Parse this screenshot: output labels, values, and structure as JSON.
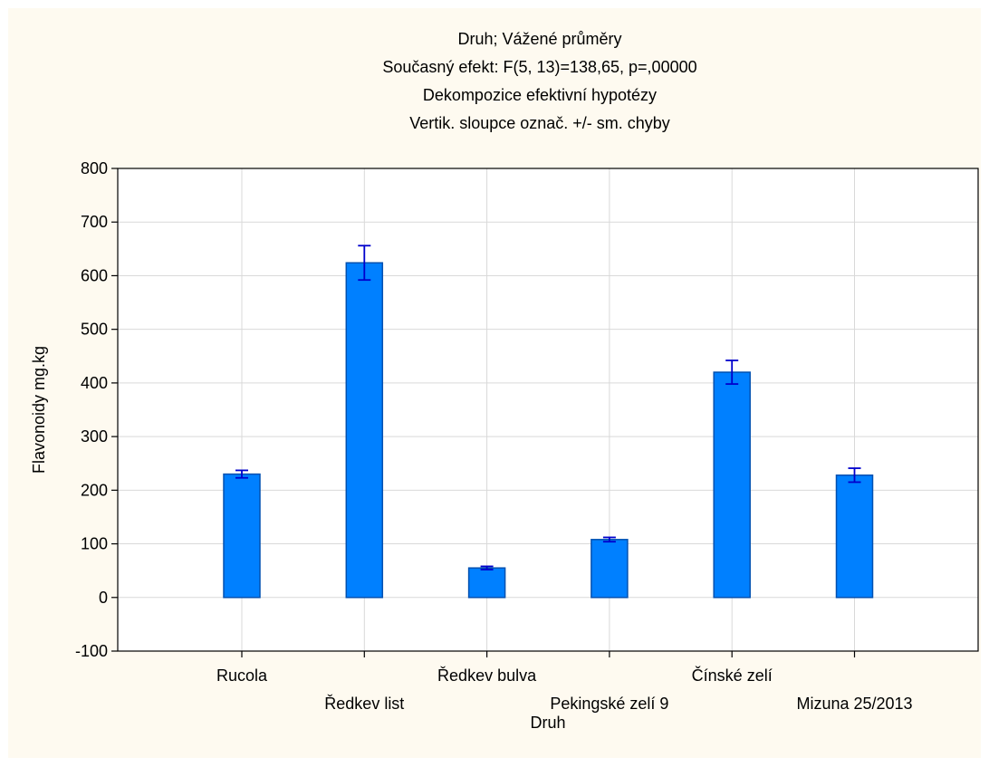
{
  "chart_data": {
    "type": "bar",
    "title": [
      "Druh; Vážené průměry",
      "Současný efekt: F(5, 13)=138,65, p=,00000",
      "Dekompozice efektivní hypotézy",
      "Vertik. sloupce označ. +/- sm. chyby"
    ],
    "xlabel": "Druh",
    "ylabel": "Flavonoidy mg.kg",
    "categories": [
      "Rucola",
      "Ředkev list",
      "Ředkev bulva",
      "Pekingské zelí 9",
      "Čínské zelí",
      "Mizuna 25/2013"
    ],
    "values": [
      230,
      624,
      55,
      108,
      420,
      228
    ],
    "error": [
      7,
      32,
      3,
      4,
      22,
      13
    ],
    "ylim": [
      -100,
      800
    ],
    "yticks": [
      -100,
      0,
      100,
      200,
      300,
      400,
      500,
      600,
      700,
      800
    ],
    "grid": true,
    "legend": "none",
    "colors": {
      "bar_fill": "#0080ff",
      "bar_edge": "#0050b0",
      "error_bar": "#0000cc",
      "grid": "#d9d9d9",
      "background": "#fefaf0",
      "plot_background": "#ffffff"
    }
  }
}
